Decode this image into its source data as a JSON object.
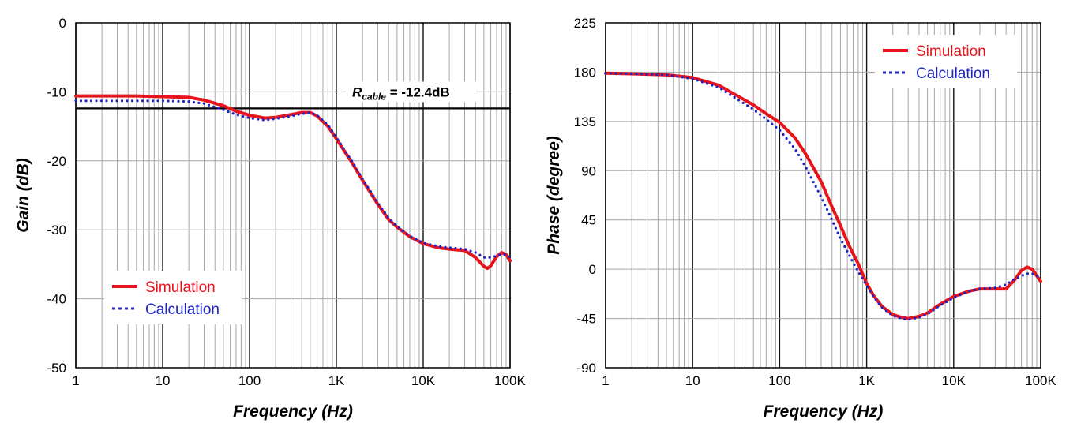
{
  "chart_data": [
    {
      "type": "line",
      "title": "",
      "xlabel": "Frequency (Hz)",
      "ylabel": "Gain (dB)",
      "xscale": "log",
      "xlim": [
        1,
        100000
      ],
      "ylim": [
        -50,
        0
      ],
      "xticks": [
        1,
        10,
        100,
        1000,
        10000,
        100000
      ],
      "xtick_labels": [
        "1",
        "10",
        "100",
        "1K",
        "10K",
        "100K"
      ],
      "yticks": [
        0,
        -10,
        -20,
        -30,
        -40,
        -50
      ],
      "ytick_labels": [
        "0",
        "-10",
        "-20",
        "-30",
        "-40",
        "-50"
      ],
      "grid": true,
      "legend": "bottom-left",
      "reference_line": {
        "y": -12.4,
        "label_main": "R",
        "label_sub": "cable",
        "label_rest": " = -12.4dB"
      },
      "series": [
        {
          "name": "Simulation",
          "color": "#e8141c",
          "style": "solid",
          "x": [
            1,
            2,
            5,
            10,
            20,
            30,
            50,
            70,
            100,
            150,
            200,
            300,
            400,
            500,
            600,
            800,
            1000,
            1500,
            2000,
            3000,
            4000,
            5000,
            7000,
            10000,
            15000,
            20000,
            30000,
            40000,
            50000,
            55000,
            60000,
            70000,
            80000,
            90000,
            100000
          ],
          "y": [
            -10.6,
            -10.6,
            -10.6,
            -10.7,
            -10.8,
            -11.2,
            -12.0,
            -12.8,
            -13.4,
            -13.8,
            -13.7,
            -13.3,
            -13.0,
            -13.0,
            -13.5,
            -15.0,
            -16.8,
            -20.2,
            -22.8,
            -26.3,
            -28.5,
            -29.6,
            -31.0,
            -32.0,
            -32.6,
            -32.8,
            -33.0,
            -34.0,
            -35.3,
            -35.6,
            -35.2,
            -33.9,
            -33.3,
            -33.6,
            -34.5
          ]
        },
        {
          "name": "Calculation",
          "color": "#1d24c6",
          "style": "dotted",
          "x": [
            1,
            2,
            5,
            10,
            20,
            30,
            50,
            70,
            100,
            150,
            200,
            300,
            400,
            500,
            600,
            800,
            1000,
            1500,
            2000,
            3000,
            4000,
            5000,
            7000,
            10000,
            15000,
            20000,
            30000,
            40000,
            50000,
            60000,
            70000,
            80000,
            90000,
            100000
          ],
          "y": [
            -11.3,
            -11.3,
            -11.3,
            -11.3,
            -11.4,
            -11.7,
            -12.6,
            -13.3,
            -13.8,
            -14.1,
            -13.9,
            -13.5,
            -13.2,
            -13.0,
            -13.4,
            -14.8,
            -16.6,
            -20.0,
            -22.6,
            -26.1,
            -28.3,
            -29.5,
            -30.9,
            -31.9,
            -32.4,
            -32.6,
            -32.8,
            -33.3,
            -34.0,
            -34.0,
            -33.8,
            -33.6,
            -33.6,
            -34.0
          ]
        }
      ]
    },
    {
      "type": "line",
      "title": "",
      "xlabel": "Frequency (Hz)",
      "ylabel": "Phase (degree)",
      "xscale": "log",
      "xlim": [
        1,
        100000
      ],
      "ylim": [
        -90,
        225
      ],
      "xticks": [
        1,
        10,
        100,
        1000,
        10000,
        100000
      ],
      "xtick_labels": [
        "1",
        "10",
        "100",
        "1K",
        "10K",
        "100K"
      ],
      "yticks": [
        225,
        180,
        135,
        90,
        45,
        0,
        -45,
        -90
      ],
      "ytick_labels": [
        "225",
        "180",
        "135",
        "90",
        "45",
        "0",
        "-45",
        "-90"
      ],
      "grid": true,
      "legend": "top-right",
      "series": [
        {
          "name": "Simulation",
          "color": "#e8141c",
          "style": "solid",
          "x": [
            1,
            2,
            5,
            10,
            20,
            30,
            50,
            70,
            100,
            150,
            200,
            300,
            400,
            500,
            600,
            700,
            800,
            1000,
            1200,
            1500,
            2000,
            2500,
            3000,
            4000,
            5000,
            7000,
            10000,
            15000,
            20000,
            30000,
            40000,
            50000,
            60000,
            70000,
            80000,
            90000,
            100000
          ],
          "y": [
            179,
            178.5,
            177.5,
            175,
            168,
            160,
            150,
            142,
            134,
            120,
            105,
            80,
            57,
            40,
            25,
            14,
            5,
            -13,
            -24,
            -34,
            -41.5,
            -44,
            -45,
            -43,
            -40,
            -32,
            -25,
            -20,
            -18,
            -18,
            -18,
            -10,
            -1,
            2,
            0,
            -6,
            -11
          ]
        },
        {
          "name": "Calculation",
          "color": "#1d24c6",
          "style": "dotted",
          "x": [
            1,
            2,
            5,
            10,
            20,
            30,
            50,
            70,
            100,
            150,
            200,
            300,
            400,
            500,
            600,
            700,
            800,
            1000,
            1200,
            1500,
            2000,
            2500,
            3000,
            4000,
            5000,
            7000,
            10000,
            15000,
            20000,
            30000,
            40000,
            50000,
            60000,
            70000,
            80000,
            90000,
            100000
          ],
          "y": [
            179,
            178.5,
            177.5,
            174,
            166,
            157,
            146,
            137,
            127,
            110,
            93,
            66,
            45,
            28,
            16,
            6,
            -2,
            -15,
            -25,
            -35,
            -42.5,
            -45,
            -46,
            -44,
            -41,
            -33,
            -26,
            -20,
            -18,
            -17,
            -14,
            -9,
            -6,
            -4,
            -4,
            -6,
            -8
          ]
        }
      ]
    }
  ]
}
